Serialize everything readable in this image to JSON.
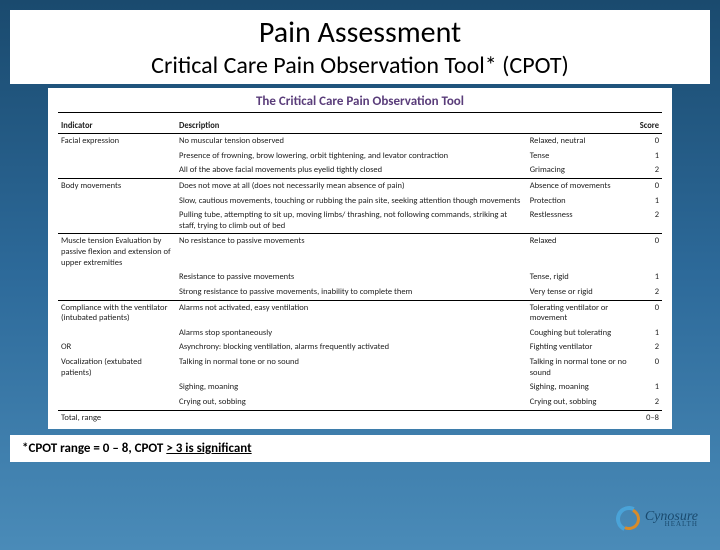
{
  "title": "Pain Assessment",
  "subtitle": "Critical Care Pain Observation Tool* (CPOT)",
  "table_title": "The Critical Care Pain Observation Tool",
  "headers": {
    "indicator": "Indicator",
    "description": "Description",
    "score": "Score"
  },
  "rows": [
    {
      "ind": "Facial expression",
      "desc": "No muscular tension observed",
      "lab": "Relaxed, neutral",
      "n": "0"
    },
    {
      "ind": "",
      "desc": "Presence of frowning, brow lowering, orbit tightening, and levator contraction",
      "lab": "Tense",
      "n": "1"
    },
    {
      "ind": "",
      "desc": "All of the above facial movements plus eyelid tightly closed",
      "lab": "Grimacing",
      "n": "2",
      "sep": true
    },
    {
      "ind": "Body movements",
      "desc": "Does not move at all (does not necessarily mean absence of pain)",
      "lab": "Absence of movements",
      "n": "0"
    },
    {
      "ind": "",
      "desc": "Slow, cautious movements, touching or rubbing the pain site, seeking attention though movements",
      "lab": "Protection",
      "n": "1"
    },
    {
      "ind": "",
      "desc": "Pulling tube, attempting to sit up, moving limbs/ thrashing, not following commands, striking at staff, trying to climb out of bed",
      "lab": "Restlessness",
      "n": "2",
      "sep": true
    },
    {
      "ind": "Muscle tension Evaluation by passive flexion and extension of upper extremities",
      "desc": "No resistance to passive movements",
      "lab": "Relaxed",
      "n": "0"
    },
    {
      "ind": "",
      "desc": "Resistance to passive movements",
      "lab": "Tense, rigid",
      "n": "1"
    },
    {
      "ind": "",
      "desc": "Strong resistance to passive movements, inability to complete them",
      "lab": "Very tense or rigid",
      "n": "2",
      "sep": true
    },
    {
      "ind": "Compliance with the ventilator (intubated patients)",
      "desc": "Alarms not activated, easy ventilation",
      "lab": "Tolerating ventilator or movement",
      "n": "0"
    },
    {
      "ind": "",
      "desc": "Alarms stop spontaneously",
      "lab": "Coughing but tolerating",
      "n": "1"
    },
    {
      "ind": "OR",
      "desc": "Asynchrony: blocking ventilation, alarms frequently activated",
      "lab": "Fighting ventilator",
      "n": "2"
    },
    {
      "ind": "Vocalization (extubated patients)",
      "desc": "Talking in normal tone or no sound",
      "lab": "Talking in normal tone or no sound",
      "n": "0"
    },
    {
      "ind": "",
      "desc": "Sighing, moaning",
      "lab": "Sighing, moaning",
      "n": "1"
    },
    {
      "ind": "",
      "desc": "Crying out, sobbing",
      "lab": "Crying out, sobbing",
      "n": "2",
      "sep": true
    },
    {
      "ind": "Total, range",
      "desc": "",
      "lab": "",
      "n": "0–8"
    }
  ],
  "footer_prefix": "*CPOT range = 0 – 8, CPOT ",
  "footer_u": "> 3 is significant",
  "logo_text": "Cynosure",
  "logo_sub": "HEALTH"
}
